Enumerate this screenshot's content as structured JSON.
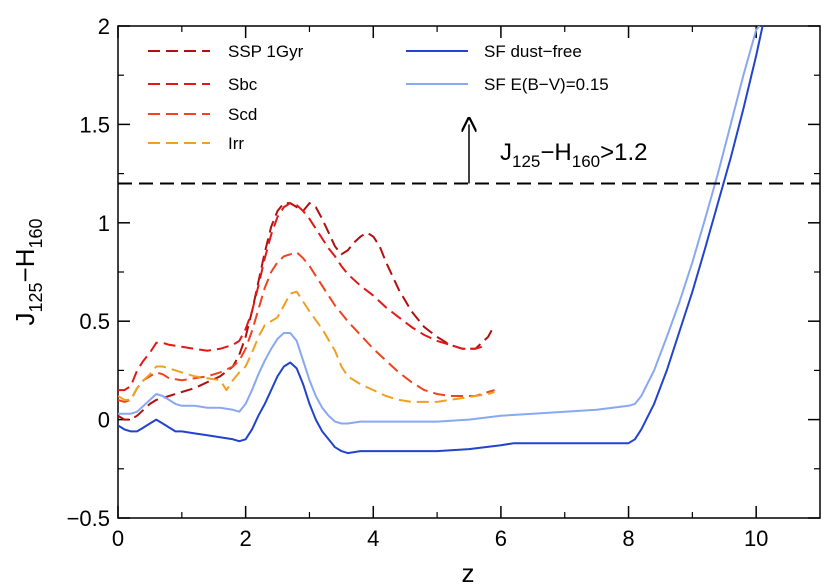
{
  "chart_data": {
    "type": "line",
    "title": "",
    "xlabel": "z",
    "ylabel_main": "J",
    "ylabel_sub1": "125",
    "ylabel_dash": "−H",
    "ylabel_sub2": "160",
    "xlim": [
      0,
      11
    ],
    "ylim": [
      -0.5,
      2
    ],
    "x_ticks": [
      0,
      2,
      4,
      6,
      8,
      10
    ],
    "y_ticks": [
      -0.5,
      0,
      0.5,
      1,
      1.5,
      2
    ],
    "x_tick_labels": [
      "0",
      "2",
      "4",
      "6",
      "8",
      "10"
    ],
    "y_tick_labels": [
      "−0.5",
      "0",
      "0.5",
      "1",
      "1.5",
      "2"
    ],
    "threshold": {
      "y": 1.2,
      "arrow_x": 5.5,
      "arrow_from": 1.2,
      "arrow_to": 1.5,
      "label_main": "J",
      "label_sub1": "125",
      "label_dash": "−H",
      "label_sub2": "160",
      "label_tail": ">1.2"
    },
    "series": [
      {
        "name": "SSP 1Gyr",
        "color": "#b21010",
        "dashed": true,
        "x": [
          0,
          0.1,
          0.2,
          0.3,
          0.4,
          0.5,
          0.6,
          0.7,
          0.8,
          1.0,
          1.2,
          1.4,
          1.6,
          1.8,
          1.9,
          2.0,
          2.1,
          2.2,
          2.3,
          2.4,
          2.5,
          2.6,
          2.7,
          2.8,
          2.9,
          3.0,
          3.1,
          3.2,
          3.3,
          3.4,
          3.5,
          3.6,
          3.7,
          3.8,
          3.9,
          4.0,
          4.1,
          4.2,
          4.4,
          4.6,
          4.8,
          5.0,
          5.2,
          5.4,
          5.6,
          5.8,
          5.9
        ],
        "y": [
          0.02,
          0.0,
          0.0,
          0.02,
          0.05,
          0.08,
          0.1,
          0.11,
          0.12,
          0.14,
          0.16,
          0.19,
          0.22,
          0.27,
          0.33,
          0.42,
          0.55,
          0.7,
          0.85,
          0.98,
          1.06,
          1.1,
          1.1,
          1.08,
          1.06,
          1.1,
          1.08,
          1.02,
          0.95,
          0.88,
          0.84,
          0.86,
          0.9,
          0.93,
          0.95,
          0.93,
          0.88,
          0.8,
          0.66,
          0.55,
          0.47,
          0.42,
          0.38,
          0.36,
          0.36,
          0.42,
          0.48
        ]
      },
      {
        "name": "Sbc",
        "color": "#e21818",
        "dashed": true,
        "x": [
          0,
          0.1,
          0.2,
          0.3,
          0.4,
          0.5,
          0.6,
          0.7,
          0.8,
          1.0,
          1.2,
          1.4,
          1.6,
          1.8,
          1.9,
          2.0,
          2.1,
          2.2,
          2.3,
          2.4,
          2.5,
          2.6,
          2.7,
          2.8,
          2.9,
          3.0,
          3.1,
          3.2,
          3.3,
          3.4,
          3.5,
          3.6,
          3.8,
          4.0,
          4.2,
          4.4,
          4.6,
          4.8,
          5.0,
          5.2,
          5.4,
          5.6,
          5.7
        ],
        "y": [
          0.15,
          0.15,
          0.17,
          0.25,
          0.3,
          0.34,
          0.39,
          0.39,
          0.38,
          0.37,
          0.36,
          0.35,
          0.36,
          0.38,
          0.4,
          0.46,
          0.55,
          0.68,
          0.82,
          0.94,
          1.03,
          1.08,
          1.1,
          1.09,
          1.06,
          1.02,
          0.97,
          0.92,
          0.87,
          0.83,
          0.78,
          0.74,
          0.68,
          0.63,
          0.57,
          0.52,
          0.47,
          0.43,
          0.4,
          0.38,
          0.36,
          0.36,
          0.37
        ]
      },
      {
        "name": "Scd",
        "color": "#ee4420",
        "dashed": true,
        "x": [
          0,
          0.1,
          0.2,
          0.3,
          0.4,
          0.5,
          0.6,
          0.7,
          0.8,
          1.0,
          1.2,
          1.4,
          1.6,
          1.8,
          1.9,
          2.0,
          2.1,
          2.2,
          2.3,
          2.4,
          2.5,
          2.6,
          2.7,
          2.8,
          2.9,
          3.0,
          3.2,
          3.4,
          3.6,
          3.8,
          4.0,
          4.2,
          4.4,
          4.6,
          4.8,
          5.0,
          5.2,
          5.4,
          5.6,
          5.8,
          5.9
        ],
        "y": [
          0.1,
          0.09,
          0.1,
          0.16,
          0.2,
          0.22,
          0.24,
          0.23,
          0.21,
          0.2,
          0.21,
          0.22,
          0.24,
          0.27,
          0.3,
          0.36,
          0.45,
          0.56,
          0.67,
          0.75,
          0.8,
          0.83,
          0.84,
          0.85,
          0.82,
          0.78,
          0.68,
          0.58,
          0.5,
          0.43,
          0.36,
          0.3,
          0.24,
          0.19,
          0.15,
          0.13,
          0.12,
          0.12,
          0.12,
          0.14,
          0.15
        ]
      },
      {
        "name": "Irr",
        "color": "#f0a020",
        "dashed": true,
        "x": [
          0,
          0.1,
          0.2,
          0.3,
          0.4,
          0.5,
          0.6,
          0.7,
          0.8,
          1.0,
          1.2,
          1.4,
          1.6,
          1.7,
          1.8,
          1.9,
          2.0,
          2.1,
          2.2,
          2.3,
          2.4,
          2.5,
          2.6,
          2.7,
          2.8,
          2.9,
          3.0,
          3.2,
          3.4,
          3.5,
          3.6,
          3.8,
          4.0,
          4.2,
          4.4,
          4.6,
          4.8,
          5.0,
          5.2,
          5.4,
          5.6,
          5.8,
          5.9
        ],
        "y": [
          0.12,
          0.1,
          0.1,
          0.16,
          0.2,
          0.23,
          0.27,
          0.27,
          0.26,
          0.24,
          0.22,
          0.21,
          0.2,
          0.15,
          0.2,
          0.24,
          0.27,
          0.34,
          0.42,
          0.48,
          0.5,
          0.52,
          0.58,
          0.64,
          0.65,
          0.6,
          0.55,
          0.46,
          0.35,
          0.27,
          0.22,
          0.18,
          0.15,
          0.12,
          0.1,
          0.09,
          0.09,
          0.09,
          0.1,
          0.11,
          0.12,
          0.13,
          0.14
        ]
      },
      {
        "name": "SF dust−free",
        "color": "#2244cc",
        "dashed": false,
        "x": [
          0,
          0.1,
          0.2,
          0.3,
          0.4,
          0.5,
          0.6,
          0.7,
          0.8,
          0.9,
          1.0,
          1.2,
          1.4,
          1.6,
          1.8,
          1.9,
          2.0,
          2.1,
          2.2,
          2.3,
          2.4,
          2.5,
          2.6,
          2.7,
          2.8,
          2.9,
          3.0,
          3.1,
          3.2,
          3.3,
          3.4,
          3.5,
          3.6,
          3.8,
          4.0,
          4.5,
          5.0,
          5.5,
          6.0,
          6.2,
          6.5,
          7.0,
          7.5,
          8.0,
          8.1,
          8.2,
          8.4,
          8.6,
          8.8,
          9.0,
          9.2,
          9.4,
          9.6,
          9.8,
          10.0,
          10.1
        ],
        "y": [
          -0.03,
          -0.05,
          -0.06,
          -0.06,
          -0.04,
          -0.02,
          0.0,
          -0.02,
          -0.04,
          -0.06,
          -0.06,
          -0.07,
          -0.08,
          -0.09,
          -0.1,
          -0.11,
          -0.1,
          -0.05,
          0.02,
          0.08,
          0.15,
          0.22,
          0.27,
          0.29,
          0.26,
          0.18,
          0.08,
          0.0,
          -0.06,
          -0.1,
          -0.14,
          -0.16,
          -0.17,
          -0.16,
          -0.16,
          -0.16,
          -0.16,
          -0.15,
          -0.13,
          -0.12,
          -0.12,
          -0.12,
          -0.12,
          -0.12,
          -0.1,
          -0.05,
          0.08,
          0.25,
          0.45,
          0.65,
          0.87,
          1.1,
          1.33,
          1.58,
          1.85,
          2.0
        ]
      },
      {
        "name": "SF E(B−V)=0.15",
        "color": "#88a8f0",
        "dashed": false,
        "x": [
          0,
          0.1,
          0.2,
          0.3,
          0.4,
          0.5,
          0.6,
          0.7,
          0.8,
          0.9,
          1.0,
          1.2,
          1.4,
          1.6,
          1.8,
          1.9,
          2.0,
          2.1,
          2.2,
          2.3,
          2.4,
          2.5,
          2.6,
          2.7,
          2.8,
          2.9,
          3.0,
          3.1,
          3.2,
          3.3,
          3.4,
          3.5,
          3.6,
          3.8,
          4.0,
          4.5,
          5.0,
          5.5,
          6.0,
          6.5,
          7.0,
          7.5,
          8.0,
          8.1,
          8.2,
          8.4,
          8.6,
          8.8,
          9.0,
          9.2,
          9.4,
          9.6,
          9.8,
          10.0,
          10.05
        ],
        "y": [
          0.03,
          0.03,
          0.03,
          0.04,
          0.07,
          0.1,
          0.13,
          0.12,
          0.1,
          0.08,
          0.07,
          0.07,
          0.06,
          0.06,
          0.05,
          0.04,
          0.08,
          0.15,
          0.23,
          0.3,
          0.36,
          0.41,
          0.44,
          0.44,
          0.4,
          0.3,
          0.2,
          0.12,
          0.06,
          0.02,
          -0.01,
          -0.02,
          -0.02,
          -0.01,
          -0.01,
          -0.01,
          -0.01,
          0.0,
          0.02,
          0.03,
          0.04,
          0.05,
          0.07,
          0.08,
          0.12,
          0.25,
          0.42,
          0.6,
          0.8,
          1.02,
          1.25,
          1.5,
          1.75,
          1.98,
          2.0
        ]
      }
    ]
  }
}
